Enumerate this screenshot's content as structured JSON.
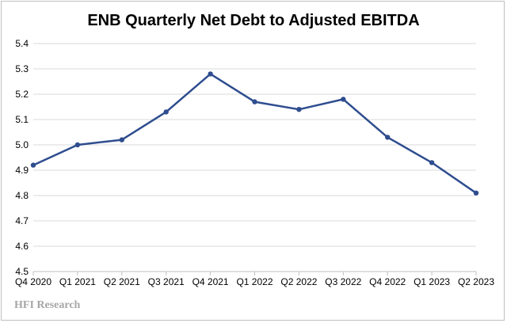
{
  "chart_data": {
    "type": "line",
    "title": "ENB Quarterly Net Debt to Adjusted EBITDA",
    "xlabel": "",
    "ylabel": "",
    "categories": [
      "Q4 2020",
      "Q1 2021",
      "Q2 2021",
      "Q3 2021",
      "Q4 2021",
      "Q1 2022",
      "Q2 2022",
      "Q3 2022",
      "Q4 2022",
      "Q1 2023",
      "Q2 2023"
    ],
    "series": [
      {
        "values": [
          4.92,
          5.0,
          5.02,
          5.13,
          5.28,
          5.17,
          5.14,
          5.18,
          5.03,
          4.93,
          4.81
        ]
      }
    ],
    "ylim": [
      4.5,
      5.4
    ],
    "yticks": [
      "4.5",
      "4.6",
      "4.7",
      "4.8",
      "4.9",
      "5.0",
      "5.1",
      "5.2",
      "5.3",
      "5.4"
    ],
    "grid": true,
    "legend": "none",
    "colors": {
      "line": "#2e4d8f",
      "grid": "#d9d9d9",
      "axis": "#bfbfbf"
    }
  },
  "watermark": "HFI Research"
}
